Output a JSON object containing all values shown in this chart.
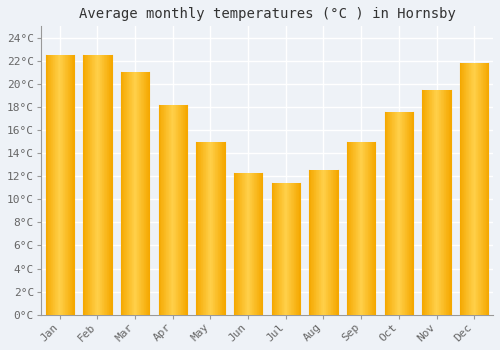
{
  "title": "Average monthly temperatures (°C ) in Hornsby",
  "months": [
    "Jan",
    "Feb",
    "Mar",
    "Apr",
    "May",
    "Jun",
    "Jul",
    "Aug",
    "Sep",
    "Oct",
    "Nov",
    "Dec"
  ],
  "values": [
    22.5,
    22.5,
    21.0,
    18.2,
    15.0,
    12.3,
    11.4,
    12.5,
    15.0,
    17.6,
    19.5,
    21.8
  ],
  "bar_color_center": "#FFD04A",
  "bar_color_edge": "#F5A800",
  "background_color": "#EEF2F7",
  "plot_bg_color": "#EEF2F7",
  "grid_color": "#FFFFFF",
  "text_color": "#666666",
  "ylim": [
    0,
    25
  ],
  "yticks": [
    0,
    2,
    4,
    6,
    8,
    10,
    12,
    14,
    16,
    18,
    20,
    22,
    24
  ],
  "title_fontsize": 10,
  "tick_fontsize": 8,
  "bar_width": 0.75
}
